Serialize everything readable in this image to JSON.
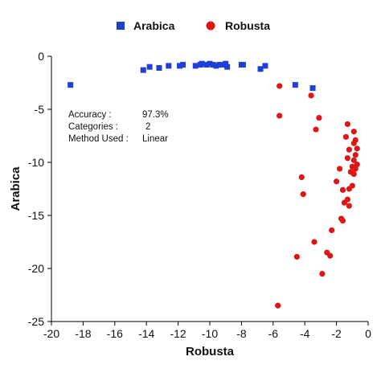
{
  "chart_data": {
    "type": "scatter",
    "xlabel": "Robusta",
    "ylabel": "Arabica",
    "xlim": [
      -20,
      0
    ],
    "ylim": [
      -25,
      0
    ],
    "x_ticks": [
      -20,
      -18,
      -16,
      -14,
      -12,
      -10,
      -8,
      -6,
      -4,
      -2,
      0
    ],
    "y_ticks": [
      0,
      -5,
      -10,
      -15,
      -20,
      -25
    ],
    "grid": false,
    "legend_position": "top",
    "annotation": {
      "lines": [
        {
          "label": "Accuracy :",
          "value": "97.3%"
        },
        {
          "label": "Categories :",
          "value": "2"
        },
        {
          "label": "Method Used :",
          "value": "Linear"
        }
      ]
    },
    "series": [
      {
        "name": "Arabica",
        "color": "#1f3fd6",
        "marker": "square",
        "points": [
          [
            -18.8,
            -2.7
          ],
          [
            -14.2,
            -1.3
          ],
          [
            -13.8,
            -1.0
          ],
          [
            -13.2,
            -1.1
          ],
          [
            -12.6,
            -0.9
          ],
          [
            -11.9,
            -0.9
          ],
          [
            -11.7,
            -0.8
          ],
          [
            -10.9,
            -0.9
          ],
          [
            -10.6,
            -0.8
          ],
          [
            -10.5,
            -0.7
          ],
          [
            -10.2,
            -0.8
          ],
          [
            -10.0,
            -0.7
          ],
          [
            -9.8,
            -0.8
          ],
          [
            -9.6,
            -0.9
          ],
          [
            -9.4,
            -0.8
          ],
          [
            -9.2,
            -0.8
          ],
          [
            -9.0,
            -0.7
          ],
          [
            -8.9,
            -1.0
          ],
          [
            -8.0,
            -0.8
          ],
          [
            -7.9,
            -0.8
          ],
          [
            -6.8,
            -1.2
          ],
          [
            -6.5,
            -0.9
          ],
          [
            -4.6,
            -2.7
          ],
          [
            -3.5,
            -3.0
          ]
        ]
      },
      {
        "name": "Robusta",
        "color": "#e01616",
        "marker": "circle",
        "points": [
          [
            -5.6,
            -2.8
          ],
          [
            -5.6,
            -5.6
          ],
          [
            -3.6,
            -3.7
          ],
          [
            -3.1,
            -5.8
          ],
          [
            -3.3,
            -6.9
          ],
          [
            -1.3,
            -6.4
          ],
          [
            -1.4,
            -7.6
          ],
          [
            -0.9,
            -7.1
          ],
          [
            -0.8,
            -7.9
          ],
          [
            -0.9,
            -8.2
          ],
          [
            -0.7,
            -8.7
          ],
          [
            -1.2,
            -8.8
          ],
          [
            -0.8,
            -9.3
          ],
          [
            -1.3,
            -9.6
          ],
          [
            -0.9,
            -9.8
          ],
          [
            -0.7,
            -10.2
          ],
          [
            -1.0,
            -10.4
          ],
          [
            -0.8,
            -10.6
          ],
          [
            -1.1,
            -10.9
          ],
          [
            -0.9,
            -11.1
          ],
          [
            -1.8,
            -10.6
          ],
          [
            -2.0,
            -11.8
          ],
          [
            -1.6,
            -12.6
          ],
          [
            -1.2,
            -12.5
          ],
          [
            -1.0,
            -12.2
          ],
          [
            -1.3,
            -13.5
          ],
          [
            -1.2,
            -14.1
          ],
          [
            -1.6,
            -15.5
          ],
          [
            -1.7,
            -15.3
          ],
          [
            -2.3,
            -16.4
          ],
          [
            -2.6,
            -18.5
          ],
          [
            -2.4,
            -18.8
          ],
          [
            -2.9,
            -20.5
          ],
          [
            -4.2,
            -11.4
          ],
          [
            -4.1,
            -13.0
          ],
          [
            -3.4,
            -17.5
          ],
          [
            -4.5,
            -18.9
          ],
          [
            -5.7,
            -23.5
          ],
          [
            -1.5,
            -13.8
          ]
        ]
      }
    ]
  }
}
